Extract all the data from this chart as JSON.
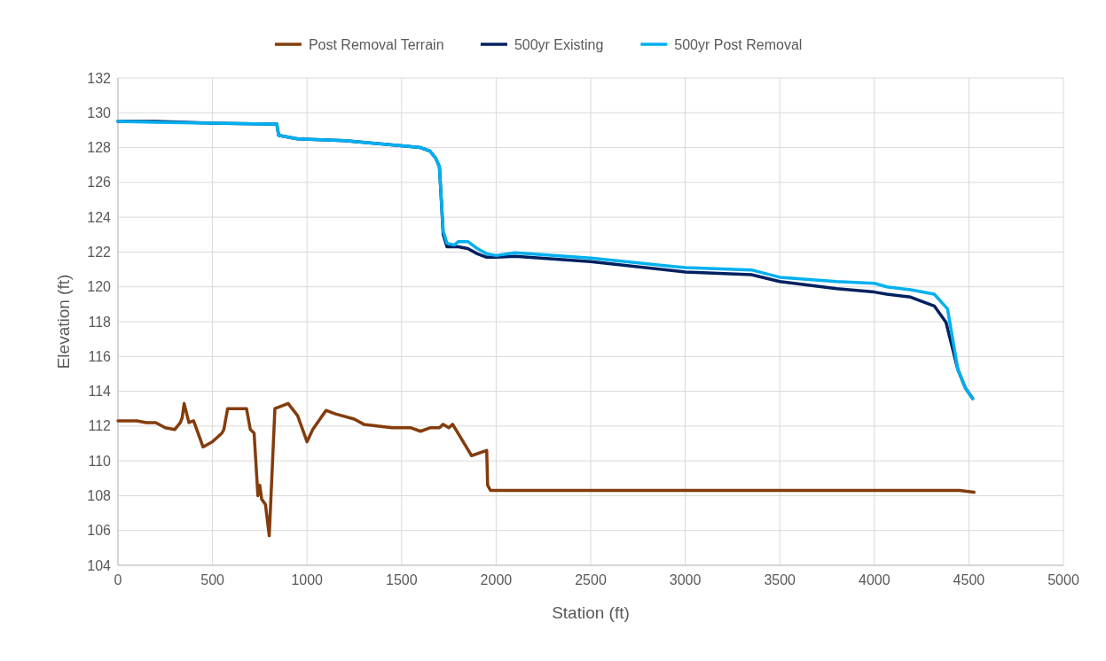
{
  "chart_data": {
    "type": "line",
    "xlabel": "Station (ft)",
    "ylabel": "Elevation (ft)",
    "xlim": [
      0,
      5000
    ],
    "xticks": [
      0,
      500,
      1000,
      1500,
      2000,
      2500,
      3000,
      3500,
      4000,
      4500,
      5000
    ],
    "ylim": [
      104,
      132
    ],
    "yticks": [
      104,
      106,
      108,
      110,
      112,
      114,
      116,
      118,
      120,
      122,
      124,
      126,
      128,
      130,
      132
    ],
    "grid": true,
    "legend": "top",
    "marker": "none",
    "line_style": "solid",
    "series": [
      {
        "name": "Post Removal Terrain",
        "color": "#843c0c",
        "x": [
          0,
          100,
          150,
          200,
          250,
          300,
          330,
          340,
          350,
          375,
          400,
          450,
          500,
          550,
          560,
          580,
          680,
          700,
          720,
          740,
          750,
          760,
          780,
          800,
          830,
          900,
          950,
          1000,
          1030,
          1100,
          1150,
          1250,
          1300,
          1450,
          1550,
          1600,
          1650,
          1700,
          1720,
          1750,
          1770,
          1870,
          1950,
          1955,
          1970,
          2000,
          4450,
          4527
        ],
        "values": [
          112.3,
          112.3,
          112.2,
          112.2,
          111.9,
          111.8,
          112.2,
          112.5,
          113.3,
          112.2,
          112.3,
          110.8,
          111.1,
          111.6,
          111.8,
          113.0,
          113.0,
          111.8,
          111.6,
          108.0,
          108.6,
          107.8,
          107.5,
          105.7,
          113.0,
          113.3,
          112.6,
          111.1,
          111.8,
          112.9,
          112.7,
          112.4,
          112.1,
          111.9,
          111.9,
          111.7,
          111.9,
          111.9,
          112.1,
          111.9,
          112.1,
          110.3,
          110.6,
          108.6,
          108.3,
          108.3,
          108.3,
          108.2
        ]
      },
      {
        "name": "500yr Existing",
        "color": "#002060",
        "x": [
          0,
          200,
          500,
          800,
          840,
          850,
          900,
          950,
          1200,
          1500,
          1600,
          1650,
          1680,
          1700,
          1710,
          1720,
          1740,
          1780,
          1800,
          1850,
          1900,
          1950,
          2000,
          2100,
          2500,
          3000,
          3350,
          3500,
          3800,
          4000,
          4066,
          4192,
          4317,
          4379,
          4442,
          4481,
          4520
        ],
        "values": [
          129.5,
          129.5,
          129.4,
          129.35,
          129.35,
          128.7,
          128.6,
          128.5,
          128.4,
          128.1,
          128.0,
          127.8,
          127.4,
          126.9,
          125.0,
          123.0,
          122.3,
          122.3,
          122.3,
          122.2,
          121.9,
          121.7,
          121.7,
          121.76,
          121.45,
          120.85,
          120.7,
          120.3,
          119.9,
          119.7,
          119.58,
          119.41,
          118.9,
          117.96,
          115.24,
          114.2,
          113.58
        ]
      },
      {
        "name": "500yr Post Removal",
        "color": "#00b0f0",
        "x": [
          0,
          200,
          500,
          800,
          840,
          850,
          900,
          950,
          1200,
          1500,
          1600,
          1650,
          1680,
          1700,
          1710,
          1720,
          1740,
          1780,
          1800,
          1850,
          1900,
          1950,
          2000,
          2100,
          2500,
          3000,
          3350,
          3500,
          3800,
          4000,
          4066,
          4192,
          4317,
          4387,
          4442,
          4481,
          4520
        ],
        "values": [
          129.5,
          129.45,
          129.4,
          129.35,
          129.35,
          128.7,
          128.6,
          128.5,
          128.4,
          128.1,
          128.0,
          127.8,
          127.4,
          126.9,
          125.0,
          123.2,
          122.5,
          122.4,
          122.6,
          122.6,
          122.2,
          121.9,
          121.8,
          121.96,
          121.65,
          121.1,
          120.97,
          120.55,
          120.3,
          120.2,
          120.0,
          119.83,
          119.58,
          118.73,
          115.24,
          114.2,
          113.58
        ]
      }
    ]
  }
}
